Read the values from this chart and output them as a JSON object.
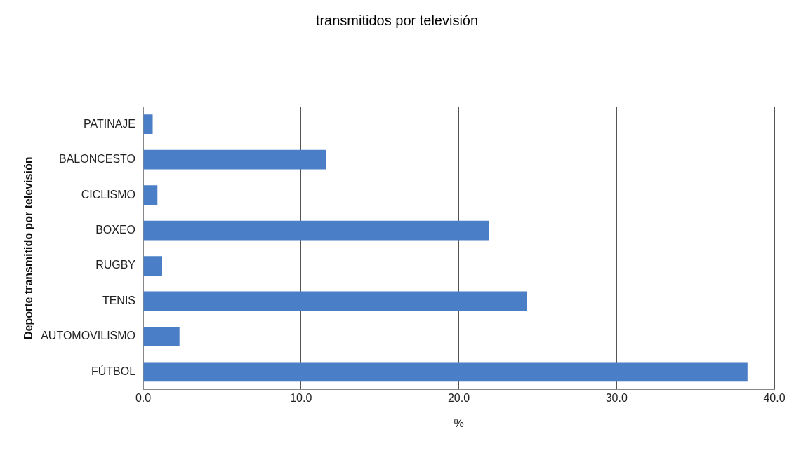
{
  "chart_data": {
    "type": "bar",
    "orientation": "horizontal",
    "title": "transmitidos por televisión",
    "xlabel": "%",
    "ylabel": "Deporte transmitido por televisión",
    "categories": [
      "PATINAJE",
      "BALONCESTO",
      "CICLISMO",
      "BOXEO",
      "RUGBY",
      "TENIS",
      "AUTOMOVILISMO",
      "FÚTBOL"
    ],
    "values": [
      0.6,
      11.6,
      0.9,
      21.9,
      1.2,
      24.3,
      2.3,
      38.3
    ],
    "color": "#4a7fc8",
    "xlim": [
      0,
      40
    ],
    "xticks": [
      {
        "value": 0,
        "label": "0.0"
      },
      {
        "value": 10,
        "label": "10.0"
      },
      {
        "value": 20,
        "label": "20.0"
      },
      {
        "value": 30,
        "label": "30.0"
      },
      {
        "value": 40,
        "label": "40.0"
      }
    ],
    "grid": "x",
    "legend": false
  }
}
